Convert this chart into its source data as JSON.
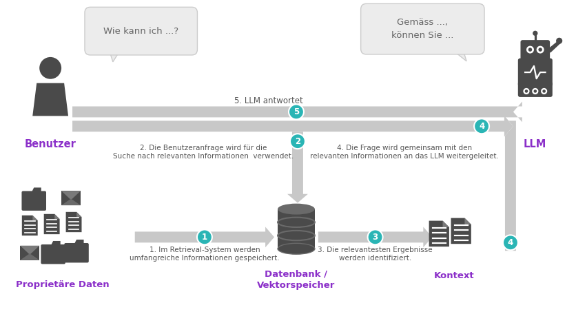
{
  "bg_color": "#ffffff",
  "arrow_color": "#c8c8c8",
  "teal_color": "#2ab5b5",
  "purple_color": "#8B2FC9",
  "dark_gray": "#4a4a4a",
  "bubble_color": "#ececec",
  "labels": {
    "benutzer": "Benutzer",
    "llm": "LLM",
    "prop_daten": "Proprietäre Daten",
    "datenbank": "Datenbank /\nVektorspeicher",
    "kontext": "Kontext"
  },
  "step_labels": {
    "s1": "1. Im Retrieval-System werden\numfangreiche Informationen gespeichert.",
    "s2": "2. Die Benutzeranfrage wird für die\nSuche nach relevanten Informationen  verwendet.",
    "s3": "3. Die relevantesten Ergebnisse\nwerden identifiziert.",
    "s4": "4. Die Frage wird gemeinsam mit den\nrelevanten Informationen an das LLM weitergeleitet.",
    "s5": "5. LLM antwortet"
  },
  "bubble_texts": {
    "user": "Wie kann ich ...?",
    "llm": "Gemäss ...,\nkönnen Sie ..."
  }
}
